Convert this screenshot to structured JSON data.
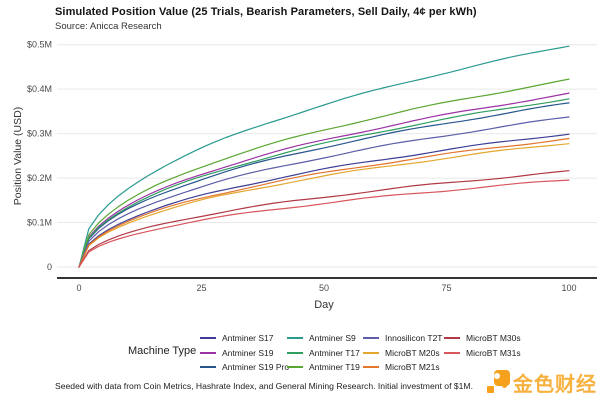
{
  "chart_data": {
    "type": "line",
    "title": "Simulated Position Value (25 Trials, Bearish Parameters, Sell Daily, 4¢ per kWh)",
    "subtitle": "Source: Anicca Research",
    "xlabel": "Day",
    "ylabel": "Position Value (USD)",
    "legend_title": "Machine Type",
    "xlim": [
      0,
      100
    ],
    "ylim": [
      0,
      0.5
    ],
    "x_ticks": [
      0,
      25,
      50,
      75,
      100
    ],
    "y_ticks": [
      {
        "label": "$0.5M",
        "value": 0.5
      },
      {
        "label": "$0.4M",
        "value": 0.4
      },
      {
        "label": "$0.3M",
        "value": 0.3
      },
      {
        "label": "$0.2M",
        "value": 0.2
      },
      {
        "label": "$0.1M",
        "value": 0.1
      },
      {
        "label": "0",
        "value": 0
      }
    ],
    "grid": true,
    "legend_position": "bottom",
    "curve_exponent": 0.45,
    "series": [
      {
        "name": "Antminer S17",
        "color": "#3e3e96",
        "start_day0": 0,
        "final_day100": 0.3
      },
      {
        "name": "Antminer S19",
        "color": "#9c32a5",
        "start_day0": 0,
        "final_day100": 0.39
      },
      {
        "name": "Antminer S19 Pro",
        "color": "#27568f",
        "start_day0": 0,
        "final_day100": 0.368
      },
      {
        "name": "Antminer S9",
        "color": "#2a9a8f",
        "start_day0": 0,
        "final_day100": 0.498
      },
      {
        "name": "Antminer T17",
        "color": "#2f9e5f",
        "start_day0": 0,
        "final_day100": 0.379
      },
      {
        "name": "Antminer T19",
        "color": "#5aa632",
        "start_day0": 0,
        "final_day100": 0.421
      },
      {
        "name": "Innosilicon T2T",
        "color": "#5d5da8",
        "start_day0": 0,
        "final_day100": 0.337
      },
      {
        "name": "MicroBT M20s",
        "color": "#e3a72e",
        "start_day0": 0,
        "final_day100": 0.279
      },
      {
        "name": "MicroBT M21s",
        "color": "#e2762f",
        "start_day0": 0,
        "final_day100": 0.289
      },
      {
        "name": "MicroBT M30s",
        "color": "#b13a45",
        "start_day0": 0,
        "final_day100": 0.215
      },
      {
        "name": "MicroBT M31s",
        "color": "#d8565c",
        "start_day0": 0,
        "final_day100": 0.196
      }
    ],
    "footnote": "Seeded with data from Coin Metrics, Hashrate Index, and General Mining Research. Initial investment of $1M."
  },
  "watermark": {
    "text": "金色财经"
  },
  "layout_colors": {
    "gridline": "#e9e9e9",
    "axis_line": "#333333",
    "tick_text": "#4a4a4a",
    "logo_orange": "#f5a11c"
  }
}
